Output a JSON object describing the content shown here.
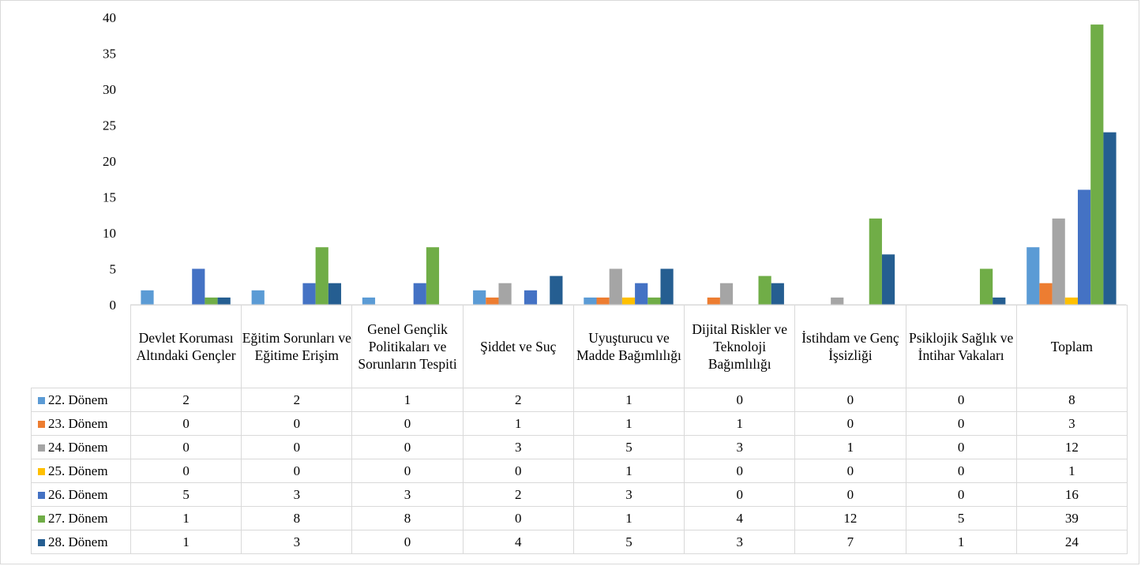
{
  "chart_data": {
    "type": "bar",
    "title": "",
    "xlabel": "",
    "ylabel": "",
    "ylim": [
      0,
      40
    ],
    "yticks": [
      0,
      5,
      10,
      15,
      20,
      25,
      30,
      35,
      40
    ],
    "grid": false,
    "legend": "data-table",
    "categories": [
      "Devlet Koruması Altındaki Gençler",
      "Eğitim Sorunları ve Eğitime Erişim",
      "Genel Gençlik Politikaları ve Sorunların Tespiti",
      "Şiddet ve Suç",
      "Uyuşturucu ve Madde Bağımlılığı",
      "Dijital Riskler ve Teknoloji Bağımlılığı",
      "İstihdam ve Genç İşsizliği",
      "Psiklojik Sağlık ve İntihar Vakaları",
      "Toplam"
    ],
    "series": [
      {
        "name": "22. Dönem",
        "color": "#5b9bd5",
        "values": [
          2,
          2,
          1,
          2,
          1,
          0,
          0,
          0,
          8
        ]
      },
      {
        "name": "23. Dönem",
        "color": "#ed7d31",
        "values": [
          0,
          0,
          0,
          1,
          1,
          1,
          0,
          0,
          3
        ]
      },
      {
        "name": "24. Dönem",
        "color": "#a5a5a5",
        "values": [
          0,
          0,
          0,
          3,
          5,
          3,
          1,
          0,
          12
        ]
      },
      {
        "name": "25. Dönem",
        "color": "#ffc000",
        "values": [
          0,
          0,
          0,
          0,
          1,
          0,
          0,
          0,
          1
        ]
      },
      {
        "name": "26. Dönem",
        "color": "#4472c4",
        "values": [
          5,
          3,
          3,
          2,
          3,
          0,
          0,
          0,
          16
        ]
      },
      {
        "name": "27. Dönem",
        "color": "#70ad47",
        "values": [
          1,
          8,
          8,
          0,
          1,
          4,
          12,
          5,
          39
        ]
      },
      {
        "name": "28. Dönem",
        "color": "#255e91",
        "values": [
          1,
          3,
          0,
          4,
          5,
          3,
          7,
          1,
          24
        ]
      }
    ]
  }
}
